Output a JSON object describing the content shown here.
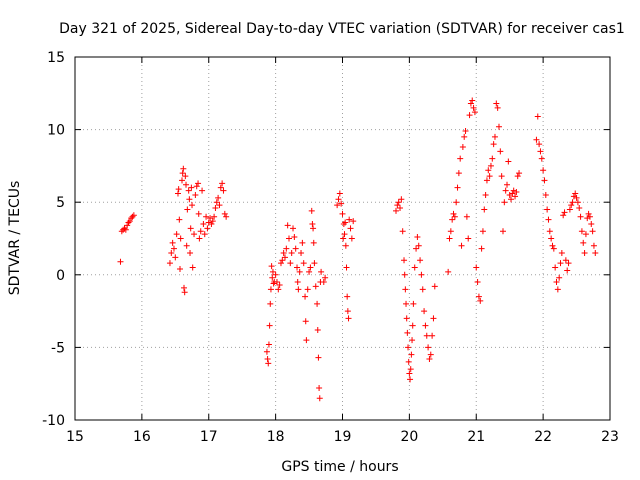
{
  "chart_data": {
    "type": "scatter",
    "title": "Day 321 of 2025, Sidereal Day-to-day VTEC variation (SDTVAR) for receiver cas1",
    "xlabel": "GPS time / hours",
    "ylabel": "SDTVAR / TECUs",
    "xlim": [
      15,
      23
    ],
    "ylim": [
      -10,
      15
    ],
    "xticks": [
      "15",
      "16",
      "17",
      "18",
      "19",
      "20",
      "21",
      "22",
      "23"
    ],
    "yticks": [
      "-10",
      "-5",
      "0",
      "5",
      "10",
      "15"
    ],
    "grid": true,
    "marker": "+",
    "color": "#ff0000",
    "series": [
      {
        "name": "SDTVAR",
        "points": [
          [
            15.68,
            0.9
          ],
          [
            15.7,
            3.0
          ],
          [
            15.72,
            3.1
          ],
          [
            15.74,
            3.2
          ],
          [
            15.76,
            3.1
          ],
          [
            15.78,
            3.4
          ],
          [
            15.8,
            3.6
          ],
          [
            15.82,
            3.7
          ],
          [
            15.84,
            3.9
          ],
          [
            15.86,
            4.0
          ],
          [
            15.88,
            4.1
          ],
          [
            16.42,
            0.8
          ],
          [
            16.44,
            1.5
          ],
          [
            16.46,
            2.2
          ],
          [
            16.48,
            1.8
          ],
          [
            16.5,
            1.2
          ],
          [
            16.52,
            2.8
          ],
          [
            16.54,
            5.6
          ],
          [
            16.55,
            5.9
          ],
          [
            16.56,
            3.8
          ],
          [
            16.57,
            0.4
          ],
          [
            16.58,
            2.5
          ],
          [
            16.6,
            6.5
          ],
          [
            16.61,
            7.0
          ],
          [
            16.62,
            7.3
          ],
          [
            16.63,
            -0.9
          ],
          [
            16.64,
            -1.2
          ],
          [
            16.65,
            6.8
          ],
          [
            16.66,
            6.2
          ],
          [
            16.67,
            2.0
          ],
          [
            16.68,
            4.5
          ],
          [
            16.7,
            5.8
          ],
          [
            16.71,
            5.2
          ],
          [
            16.72,
            1.5
          ],
          [
            16.73,
            3.2
          ],
          [
            16.74,
            6.0
          ],
          [
            16.75,
            4.8
          ],
          [
            16.76,
            0.5
          ],
          [
            16.78,
            2.8
          ],
          [
            16.8,
            5.5
          ],
          [
            16.82,
            6.1
          ],
          [
            16.84,
            6.3
          ],
          [
            16.85,
            4.2
          ],
          [
            16.86,
            2.5
          ],
          [
            16.88,
            3.0
          ],
          [
            16.9,
            5.8
          ],
          [
            16.92,
            3.5
          ],
          [
            16.94,
            2.8
          ],
          [
            16.96,
            4.0
          ],
          [
            16.98,
            3.2
          ],
          [
            17.0,
            3.6
          ],
          [
            17.02,
            3.9
          ],
          [
            17.04,
            3.5
          ],
          [
            17.06,
            3.7
          ],
          [
            17.08,
            4.0
          ],
          [
            17.1,
            4.6
          ],
          [
            17.12,
            5.0
          ],
          [
            17.14,
            5.3
          ],
          [
            17.16,
            4.8
          ],
          [
            17.18,
            6.0
          ],
          [
            17.2,
            6.3
          ],
          [
            17.22,
            5.8
          ],
          [
            17.24,
            4.2
          ],
          [
            17.26,
            4.0
          ],
          [
            17.87,
            -5.3
          ],
          [
            17.88,
            -5.8
          ],
          [
            17.89,
            -6.1
          ],
          [
            17.9,
            -4.8
          ],
          [
            17.91,
            -3.5
          ],
          [
            17.92,
            -2.0
          ],
          [
            17.93,
            -1.0
          ],
          [
            17.94,
            0.6
          ],
          [
            17.95,
            -0.2
          ],
          [
            17.96,
            0.2
          ],
          [
            17.97,
            -0.6
          ],
          [
            17.98,
            -0.5
          ],
          [
            18.0,
            0.0
          ],
          [
            18.02,
            -0.5
          ],
          [
            18.04,
            -1.0
          ],
          [
            18.06,
            -0.7
          ],
          [
            18.08,
            0.8
          ],
          [
            18.1,
            1.0
          ],
          [
            18.12,
            1.5
          ],
          [
            18.14,
            1.2
          ],
          [
            18.16,
            1.8
          ],
          [
            18.18,
            3.4
          ],
          [
            18.2,
            2.5
          ],
          [
            18.22,
            0.8
          ],
          [
            18.24,
            1.5
          ],
          [
            18.26,
            3.2
          ],
          [
            18.28,
            2.6
          ],
          [
            18.3,
            1.8
          ],
          [
            18.32,
            0.5
          ],
          [
            18.33,
            -0.5
          ],
          [
            18.34,
            -1.0
          ],
          [
            18.36,
            0.2
          ],
          [
            18.38,
            1.5
          ],
          [
            18.4,
            2.2
          ],
          [
            18.42,
            0.8
          ],
          [
            18.44,
            -1.5
          ],
          [
            18.45,
            -3.2
          ],
          [
            18.46,
            -4.5
          ],
          [
            18.48,
            -1.0
          ],
          [
            18.5,
            0.2
          ],
          [
            18.52,
            0.5
          ],
          [
            18.54,
            4.4
          ],
          [
            18.55,
            3.5
          ],
          [
            18.56,
            3.2
          ],
          [
            18.57,
            2.2
          ],
          [
            18.58,
            0.8
          ],
          [
            18.6,
            -0.8
          ],
          [
            18.62,
            -2.0
          ],
          [
            18.63,
            -3.8
          ],
          [
            18.64,
            -5.7
          ],
          [
            18.65,
            -7.8
          ],
          [
            18.66,
            -8.5
          ],
          [
            18.67,
            -0.5
          ],
          [
            18.68,
            0.2
          ],
          [
            18.72,
            -0.5
          ],
          [
            18.74,
            -0.2
          ],
          [
            18.92,
            4.8
          ],
          [
            18.94,
            5.2
          ],
          [
            18.96,
            5.6
          ],
          [
            18.98,
            4.9
          ],
          [
            19.0,
            4.2
          ],
          [
            19.01,
            2.5
          ],
          [
            19.02,
            3.5
          ],
          [
            19.03,
            2.8
          ],
          [
            19.04,
            3.6
          ],
          [
            19.05,
            2.0
          ],
          [
            19.06,
            0.5
          ],
          [
            19.07,
            -1.5
          ],
          [
            19.08,
            -2.5
          ],
          [
            19.09,
            -3.0
          ],
          [
            19.1,
            3.8
          ],
          [
            19.12,
            3.2
          ],
          [
            19.14,
            2.5
          ],
          [
            19.16,
            3.7
          ],
          [
            19.8,
            4.4
          ],
          [
            19.82,
            4.8
          ],
          [
            19.84,
            5.0
          ],
          [
            19.86,
            4.6
          ],
          [
            19.88,
            5.2
          ],
          [
            19.9,
            3.0
          ],
          [
            19.92,
            1.0
          ],
          [
            19.93,
            0.0
          ],
          [
            19.94,
            -1.0
          ],
          [
            19.95,
            -2.0
          ],
          [
            19.96,
            -3.0
          ],
          [
            19.97,
            -4.0
          ],
          [
            19.98,
            -5.0
          ],
          [
            19.99,
            -6.0
          ],
          [
            20.0,
            -6.8
          ],
          [
            20.01,
            -7.2
          ],
          [
            20.02,
            -6.5
          ],
          [
            20.03,
            -5.5
          ],
          [
            20.04,
            -4.5
          ],
          [
            20.05,
            -3.5
          ],
          [
            20.06,
            -2.0
          ],
          [
            20.08,
            0.5
          ],
          [
            20.1,
            1.8
          ],
          [
            20.12,
            2.6
          ],
          [
            20.14,
            2.0
          ],
          [
            20.16,
            1.0
          ],
          [
            20.18,
            0.0
          ],
          [
            20.2,
            -1.0
          ],
          [
            20.22,
            -2.5
          ],
          [
            20.24,
            -3.5
          ],
          [
            20.26,
            -4.2
          ],
          [
            20.28,
            -5.0
          ],
          [
            20.3,
            -5.8
          ],
          [
            20.32,
            -5.5
          ],
          [
            20.34,
            -4.2
          ],
          [
            20.36,
            -3.0
          ],
          [
            20.38,
            -0.8
          ],
          [
            20.58,
            0.2
          ],
          [
            20.6,
            2.5
          ],
          [
            20.62,
            3.0
          ],
          [
            20.64,
            3.8
          ],
          [
            20.66,
            4.2
          ],
          [
            20.68,
            4.0
          ],
          [
            20.7,
            5.0
          ],
          [
            20.72,
            6.0
          ],
          [
            20.74,
            7.0
          ],
          [
            20.76,
            8.0
          ],
          [
            20.78,
            2.0
          ],
          [
            20.8,
            8.8
          ],
          [
            20.82,
            9.5
          ],
          [
            20.84,
            9.9
          ],
          [
            20.86,
            4.0
          ],
          [
            20.88,
            2.5
          ],
          [
            20.9,
            11.0
          ],
          [
            20.92,
            11.8
          ],
          [
            20.94,
            12.0
          ],
          [
            20.96,
            11.5
          ],
          [
            20.98,
            11.2
          ],
          [
            21.0,
            0.5
          ],
          [
            21.02,
            -0.5
          ],
          [
            21.04,
            -1.5
          ],
          [
            21.06,
            -1.8
          ],
          [
            21.08,
            1.8
          ],
          [
            21.1,
            3.0
          ],
          [
            21.12,
            4.5
          ],
          [
            21.14,
            5.5
          ],
          [
            21.16,
            6.5
          ],
          [
            21.18,
            7.2
          ],
          [
            21.2,
            6.8
          ],
          [
            21.22,
            7.5
          ],
          [
            21.24,
            8.0
          ],
          [
            21.26,
            9.0
          ],
          [
            21.28,
            9.5
          ],
          [
            21.3,
            11.8
          ],
          [
            21.32,
            11.5
          ],
          [
            21.34,
            10.2
          ],
          [
            21.36,
            8.5
          ],
          [
            21.38,
            6.8
          ],
          [
            21.4,
            3.0
          ],
          [
            21.42,
            5.0
          ],
          [
            21.44,
            5.8
          ],
          [
            21.46,
            6.2
          ],
          [
            21.48,
            7.8
          ],
          [
            21.5,
            5.5
          ],
          [
            21.52,
            5.2
          ],
          [
            21.54,
            5.6
          ],
          [
            21.56,
            5.8
          ],
          [
            21.58,
            5.4
          ],
          [
            21.6,
            5.7
          ],
          [
            21.62,
            6.8
          ],
          [
            21.64,
            7.0
          ],
          [
            21.9,
            9.3
          ],
          [
            21.92,
            10.9
          ],
          [
            21.94,
            9.0
          ],
          [
            21.96,
            8.5
          ],
          [
            21.98,
            8.0
          ],
          [
            22.0,
            7.2
          ],
          [
            22.02,
            6.5
          ],
          [
            22.04,
            5.5
          ],
          [
            22.06,
            4.5
          ],
          [
            22.08,
            3.8
          ],
          [
            22.1,
            3.0
          ],
          [
            22.12,
            2.5
          ],
          [
            22.14,
            2.0
          ],
          [
            22.16,
            1.8
          ],
          [
            22.18,
            0.5
          ],
          [
            22.2,
            -0.5
          ],
          [
            22.22,
            -1.0
          ],
          [
            22.24,
            -0.2
          ],
          [
            22.26,
            0.8
          ],
          [
            22.28,
            1.5
          ],
          [
            22.3,
            4.1
          ],
          [
            22.32,
            4.3
          ],
          [
            22.34,
            1.0
          ],
          [
            22.36,
            0.3
          ],
          [
            22.38,
            0.8
          ],
          [
            22.4,
            4.5
          ],
          [
            22.42,
            4.8
          ],
          [
            22.44,
            5.0
          ],
          [
            22.46,
            5.4
          ],
          [
            22.48,
            5.6
          ],
          [
            22.5,
            5.3
          ],
          [
            22.52,
            5.0
          ],
          [
            22.54,
            4.6
          ],
          [
            22.56,
            4.0
          ],
          [
            22.58,
            3.0
          ],
          [
            22.6,
            2.2
          ],
          [
            22.62,
            1.5
          ],
          [
            22.64,
            2.8
          ],
          [
            22.66,
            3.9
          ],
          [
            22.68,
            4.2
          ],
          [
            22.7,
            4.0
          ],
          [
            22.72,
            3.5
          ],
          [
            22.74,
            3.0
          ],
          [
            22.76,
            2.0
          ],
          [
            22.78,
            1.5
          ]
        ]
      }
    ]
  }
}
